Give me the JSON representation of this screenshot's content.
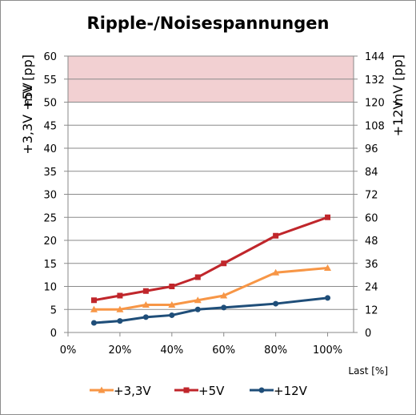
{
  "chart_data": {
    "type": "line",
    "title": "Ripple-/Noisespannungen",
    "xlabel": "Last [%]",
    "ylabel_left": [
      "+3,3V +5V",
      "mV [pp]"
    ],
    "ylabel_right": [
      "+12V",
      "mV [pp]"
    ],
    "x": [
      10,
      20,
      30,
      40,
      50,
      60,
      80,
      100
    ],
    "x_ticks": [
      "0%",
      "20%",
      "40%",
      "60%",
      "80%",
      "100%"
    ],
    "xlim": [
      0,
      110
    ],
    "ylim_left": [
      0,
      60
    ],
    "ylim_right": [
      0,
      144
    ],
    "y_ticks_left": [
      "0",
      "5",
      "10",
      "15",
      "20",
      "25",
      "30",
      "35",
      "40",
      "45",
      "50",
      "55",
      "60"
    ],
    "y_ticks_right": [
      "0",
      "12",
      "24",
      "36",
      "48",
      "60",
      "72",
      "84",
      "96",
      "108",
      "120",
      "132",
      "144"
    ],
    "limit_band_left": [
      50,
      60
    ],
    "grid": true,
    "legend_position": "bottom",
    "series": [
      {
        "name": "+3,3V",
        "axis": "left",
        "color": "#f79646",
        "marker": "triangle",
        "values": [
          5,
          5,
          6,
          6,
          7,
          8,
          13,
          14
        ]
      },
      {
        "name": "+5V",
        "axis": "left",
        "color": "#c0262b",
        "marker": "square",
        "values": [
          7,
          8,
          9,
          10,
          12,
          15,
          21,
          25
        ]
      },
      {
        "name": "+12V",
        "axis": "right",
        "color": "#1f4e79",
        "marker": "circle",
        "values": [
          5,
          6,
          8,
          9,
          12,
          13,
          15,
          18
        ]
      }
    ],
    "colors": {
      "band_fill": "#f2d0d2",
      "grid": "#8a8a8a",
      "axis": "#8a8a8a"
    }
  }
}
